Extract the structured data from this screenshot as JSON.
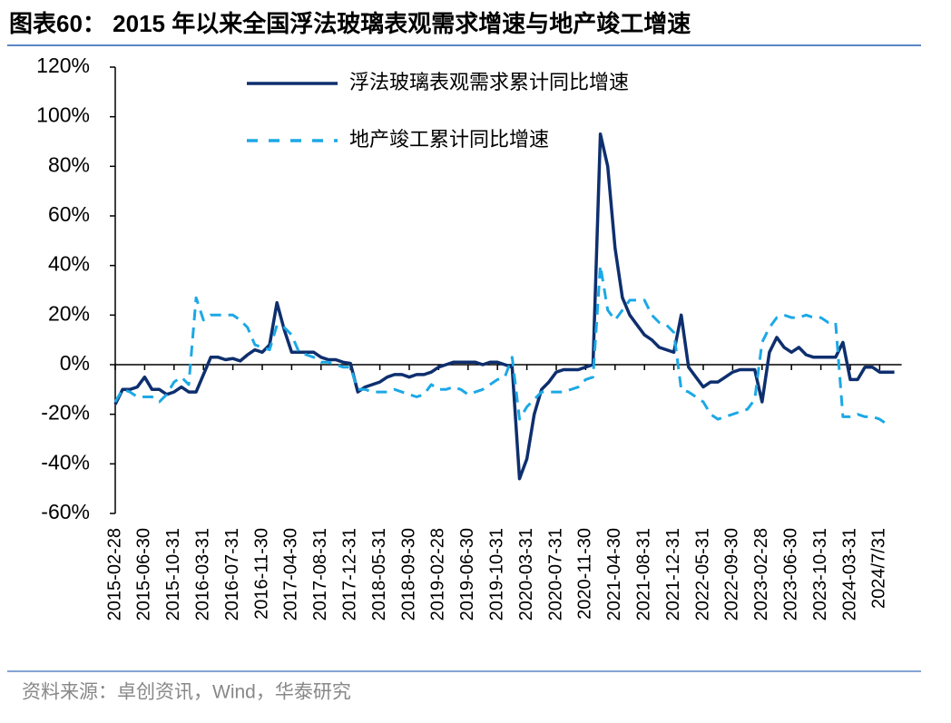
{
  "chart_data": {
    "type": "line",
    "title": "图表60： 2015 年以来全国浮法玻璃表观需求增速与地产竣工增速",
    "source": "资料来源：卓创资讯，Wind，华泰研究",
    "categories": [
      "2015-02-28",
      null,
      null,
      null,
      "2015-06-30",
      null,
      null,
      null,
      "2015-10-31",
      null,
      null,
      null,
      "2016-03-31",
      null,
      null,
      null,
      "2016-07-31",
      null,
      null,
      null,
      "2016-11-30",
      null,
      null,
      null,
      "2017-04-30",
      null,
      null,
      null,
      "2017-08-31",
      null,
      null,
      null,
      "2017-12-31",
      null,
      null,
      null,
      "2018-05-31",
      null,
      null,
      null,
      "2018-09-30",
      null,
      null,
      null,
      "2019-02-28",
      null,
      null,
      null,
      "2019-06-30",
      null,
      null,
      null,
      "2019-10-31",
      null,
      null,
      null,
      "2020-03-31",
      null,
      null,
      null,
      "2020-07-31",
      null,
      null,
      null,
      "2020-11-30",
      null,
      null,
      null,
      "2021-04-30",
      null,
      null,
      null,
      "2021-08-31",
      null,
      null,
      null,
      "2021-12-31",
      null,
      null,
      null,
      "2022-05-31",
      null,
      null,
      null,
      "2022-09-30",
      null,
      null,
      null,
      "2023-02-28",
      null,
      null,
      null,
      "2023-06-30",
      null,
      null,
      null,
      "2023-10-31",
      null,
      null,
      null,
      "2024-03-31",
      null,
      null,
      null,
      "2024/7/31",
      null,
      null
    ],
    "series": [
      {
        "name": "浮法玻璃表观需求累计同比增速",
        "color": "#0e2f6e",
        "dash": false,
        "values": [
          -16,
          -10,
          -10,
          -9,
          -5,
          -10,
          -10,
          -12,
          -11,
          -9,
          -11,
          -11,
          -4,
          3,
          3,
          2,
          2.5,
          1.5,
          4,
          6,
          5,
          8,
          25,
          14,
          5,
          5,
          5,
          5,
          3,
          2,
          2,
          1,
          0.5,
          -11,
          -9,
          -8,
          -7,
          -5,
          -4,
          -4,
          -5,
          -4,
          -4,
          -3,
          -1,
          0,
          1,
          1,
          1,
          1,
          0,
          1,
          1,
          0,
          -1,
          -46,
          -38,
          -20,
          -10,
          -7,
          -3,
          -2,
          -2,
          -2,
          -1,
          0,
          93,
          80,
          47,
          27,
          20,
          16,
          12,
          10,
          7,
          6,
          5,
          20,
          -1,
          -5,
          -9,
          -7,
          -7,
          -5,
          -3,
          -2,
          -2,
          -2,
          -15,
          5,
          11,
          7,
          5,
          7,
          4,
          3,
          3,
          3,
          3,
          9,
          -6,
          -6,
          -1,
          -1,
          -3,
          -3,
          -3
        ]
      },
      {
        "name": "地产竣工累计同比增速",
        "color": "#1ca8e6",
        "dash": true,
        "values": [
          -15,
          -10,
          -11,
          -13,
          -13,
          -13,
          -15,
          -12,
          -7,
          -5,
          -8,
          27,
          18,
          20,
          20,
          20,
          20,
          18,
          15,
          8,
          7,
          6,
          16,
          15,
          12,
          5,
          4,
          3,
          1,
          1,
          0,
          -1,
          -1,
          -10,
          -10,
          -11,
          -11,
          -11,
          -10,
          -11,
          -12,
          -13,
          -12,
          -8,
          -10,
          -10,
          -9,
          -10,
          -12,
          -11,
          -10,
          -8,
          -6,
          -5,
          3,
          -22,
          -17,
          -14,
          -11,
          -11,
          -11,
          -11,
          -10,
          -9,
          -6,
          -5,
          40,
          22,
          18,
          22,
          26,
          26,
          26,
          20,
          17,
          16,
          13,
          -10,
          -11,
          -13,
          -15,
          -20,
          -22,
          -21,
          -20,
          -19,
          -18,
          -14,
          9,
          15,
          19,
          20,
          19,
          19,
          20,
          19,
          19,
          17,
          17,
          -21,
          -21,
          -20,
          -21,
          -21,
          -22,
          -24,
          null
        ]
      }
    ],
    "ylim": [
      -60,
      120
    ],
    "yticks": [
      {
        "value": -60,
        "label": "-60%"
      },
      {
        "value": -40,
        "label": "-40%"
      },
      {
        "value": -20,
        "label": "-20%"
      },
      {
        "value": 0,
        "label": "0%"
      },
      {
        "value": 20,
        "label": "20%"
      },
      {
        "value": 40,
        "label": "40%"
      },
      {
        "value": 60,
        "label": "60%"
      },
      {
        "value": 80,
        "label": "80%"
      },
      {
        "value": 100,
        "label": "100%"
      },
      {
        "value": 120,
        "label": "120%"
      }
    ]
  }
}
